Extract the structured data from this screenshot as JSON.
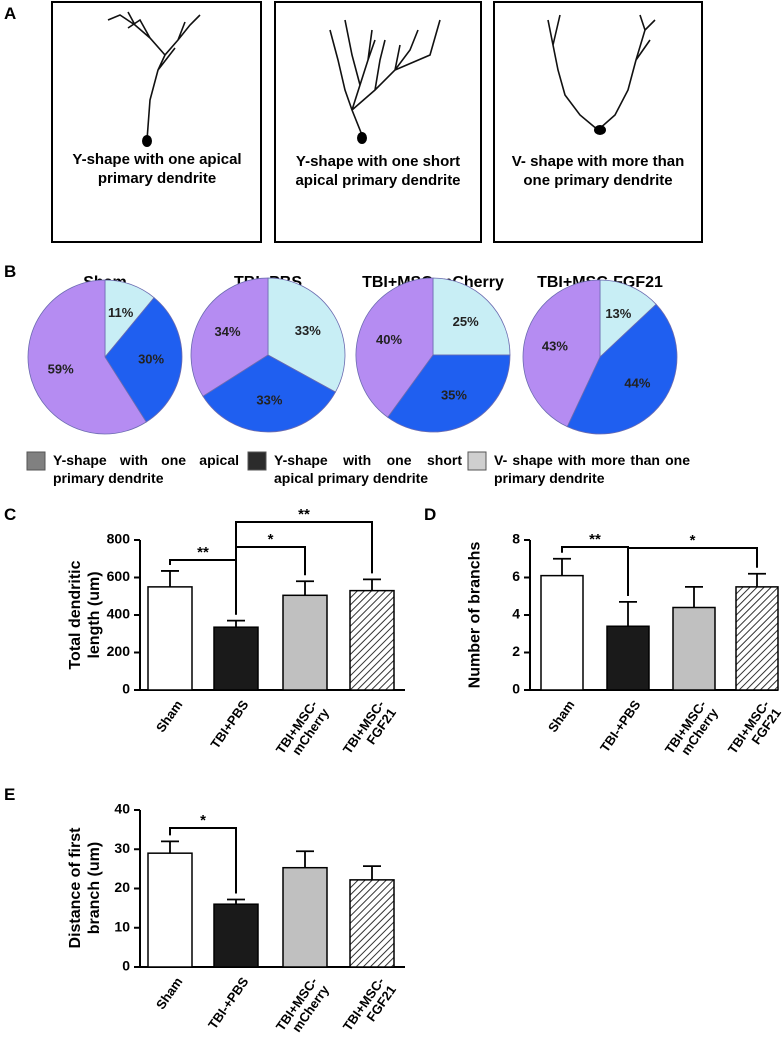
{
  "panel_labels": [
    "A",
    "B",
    "C",
    "D",
    "E"
  ],
  "panel_a": {
    "captions": [
      "Y-shape with one apical primary dendrite",
      "Y-shape with one short apical primary dendrite",
      "V- shape with more than one primary dendrite"
    ]
  },
  "pie_legend": {
    "labels": [
      "Y-shape with one apical primary dendrite",
      "Y-shape with one short apical primary dendrite",
      "V- shape with more than one primary dendrite"
    ],
    "colors": [
      "#808080",
      "#2b2b2b",
      "#cfcfcf"
    ]
  },
  "chart_data": [
    {
      "type": "pie",
      "title": "Sham",
      "values": [
        59,
        30,
        11
      ],
      "value_labels": [
        "59%",
        "30%",
        "11%"
      ],
      "colors": [
        "#b58cf2",
        "#1f5ff0",
        "#c8eef5"
      ]
    },
    {
      "type": "pie",
      "title": "TBI+PBS",
      "values": [
        34,
        33,
        33
      ],
      "value_labels": [
        "34%",
        "33%",
        "33%"
      ],
      "colors": [
        "#b58cf2",
        "#1f5ff0",
        "#c8eef5"
      ]
    },
    {
      "type": "pie",
      "title": "TBI+MSC-mCherry",
      "values": [
        40,
        35,
        25
      ],
      "value_labels": [
        "40%",
        "35%",
        "25%"
      ],
      "colors": [
        "#b58cf2",
        "#1f5ff0",
        "#c8eef5"
      ]
    },
    {
      "type": "pie",
      "title": "TBI+MSC-FGF21",
      "values": [
        43,
        44,
        13
      ],
      "value_labels": [
        "43%",
        "44%",
        "13%"
      ],
      "colors": [
        "#b58cf2",
        "#1f5ff0",
        "#c8eef5"
      ]
    },
    {
      "type": "bar",
      "y_label": "Total dendritic length (um)",
      "categories": [
        "Sham",
        "TBI+PBS",
        "TBI+MSC-mCherry",
        "TBI+MSC-FGF21"
      ],
      "values": [
        550,
        335,
        505,
        530
      ],
      "errors": [
        85,
        35,
        75,
        60
      ],
      "colors": [
        "#ffffff",
        "#1a1a1a",
        "#c0c0c0",
        "#ffffff"
      ],
      "hatched": [
        false,
        false,
        false,
        true
      ],
      "ylim": [
        0,
        800
      ],
      "yticks": [
        0,
        200,
        400,
        600,
        800
      ],
      "annotations": [
        "**",
        "*",
        "**"
      ]
    },
    {
      "type": "bar",
      "y_label": "Number of branchs",
      "categories": [
        "Sham",
        "TBI-+PBS",
        "TBI+MSC-mCherry",
        "TBI+MSC-FGF21"
      ],
      "values": [
        6.1,
        3.4,
        4.4,
        5.5
      ],
      "errors": [
        0.9,
        1.3,
        1.1,
        0.7
      ],
      "colors": [
        "#ffffff",
        "#1a1a1a",
        "#c0c0c0",
        "#ffffff"
      ],
      "hatched": [
        false,
        false,
        false,
        true
      ],
      "ylim": [
        0,
        8
      ],
      "yticks": [
        0,
        2,
        4,
        6,
        8
      ],
      "annotations": [
        "**",
        "*"
      ]
    },
    {
      "type": "bar",
      "y_label": "Distance of first branch (um)",
      "categories": [
        "Sham",
        "TBI-+PBS",
        "TBI+MSC-mCherry",
        "TBI+MSC-FGF21"
      ],
      "values": [
        29,
        16,
        25.3,
        22.2
      ],
      "errors": [
        3,
        1.2,
        4.2,
        3.5
      ],
      "colors": [
        "#ffffff",
        "#1a1a1a",
        "#c0c0c0",
        "#ffffff"
      ],
      "hatched": [
        false,
        false,
        false,
        true
      ],
      "ylim": [
        0,
        40
      ],
      "yticks": [
        0,
        10,
        20,
        30,
        40
      ],
      "annotations": [
        "*"
      ]
    }
  ]
}
